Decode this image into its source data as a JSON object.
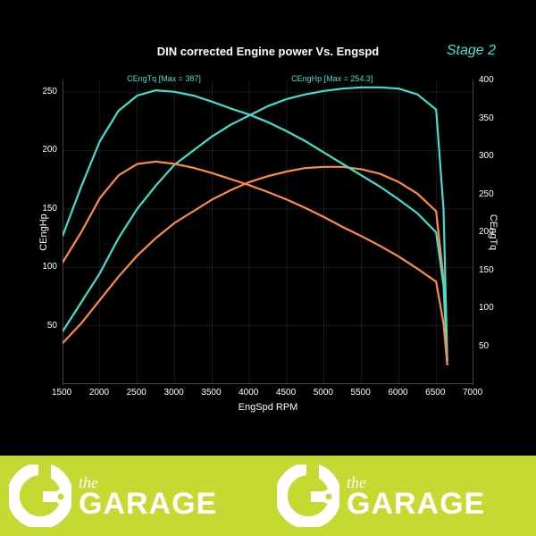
{
  "chart": {
    "type": "line",
    "title": "DIN corrected Engine power Vs. Engspd",
    "stage_label": "Stage 2",
    "xlabel": "EngSpd RPM",
    "ylabel_left": "CEngHp",
    "ylabel_right": "CEngTq",
    "xlim": [
      1500,
      7000
    ],
    "xticks": [
      1500,
      2000,
      2500,
      3000,
      3500,
      4000,
      4500,
      5000,
      5500,
      6000,
      6500,
      7000
    ],
    "ylim_left": [
      0,
      260
    ],
    "yticks_left": [
      50,
      100,
      150,
      200,
      250
    ],
    "ylim_right": [
      0,
      400
    ],
    "yticks_right": [
      50,
      100,
      150,
      200,
      250,
      300,
      350,
      400
    ],
    "background_color": "#000000",
    "grid_color": "#333333",
    "axis_color": "#888888",
    "text_color": "#ffffff",
    "title_fontsize": 13,
    "label_fontsize": 11,
    "tick_fontsize": 10,
    "annotations": [
      {
        "text": "CEngTq [Max = 387]",
        "x_rpm": 2900,
        "y_hp": 258,
        "color": "#40e0d0"
      },
      {
        "text": "CEngHp [Max = 254.3]",
        "x_rpm": 5100,
        "y_hp": 258,
        "color": "#40e0d0"
      }
    ],
    "series": [
      {
        "name": "hp_stage2",
        "color": "#40e0d0",
        "axis": "left",
        "x": [
          1500,
          1750,
          2000,
          2250,
          2500,
          2750,
          3000,
          3250,
          3500,
          3750,
          4000,
          4250,
          4500,
          4750,
          5000,
          5250,
          5500,
          5750,
          6000,
          6250,
          6500,
          6600,
          6650
        ],
        "y": [
          45,
          70,
          95,
          125,
          150,
          170,
          188,
          200,
          212,
          222,
          230,
          238,
          244,
          248,
          251,
          253,
          254,
          254,
          253,
          248,
          235,
          150,
          20
        ]
      },
      {
        "name": "hp_stock",
        "color": "#ff8c42",
        "axis": "left",
        "x": [
          1500,
          1750,
          2000,
          2250,
          2500,
          2750,
          3000,
          3250,
          3500,
          3750,
          4000,
          4250,
          4500,
          4750,
          5000,
          5250,
          5500,
          5750,
          6000,
          6250,
          6500,
          6600,
          6650
        ],
        "y": [
          35,
          52,
          72,
          92,
          110,
          125,
          138,
          148,
          158,
          166,
          173,
          178,
          182,
          185,
          186,
          186,
          184,
          180,
          173,
          163,
          148,
          90,
          20
        ]
      },
      {
        "name": "tq_stage2",
        "color": "#40e0d0",
        "axis": "right",
        "x": [
          1500,
          1750,
          2000,
          2250,
          2500,
          2750,
          3000,
          3250,
          3500,
          3750,
          4000,
          4250,
          4500,
          4750,
          5000,
          5250,
          5500,
          5750,
          6000,
          6250,
          6500,
          6600,
          6650
        ],
        "y": [
          195,
          260,
          320,
          360,
          380,
          387,
          385,
          380,
          372,
          363,
          355,
          345,
          333,
          320,
          305,
          290,
          275,
          260,
          243,
          225,
          200,
          130,
          25
        ]
      },
      {
        "name": "tq_stock",
        "color": "#ff8c42",
        "axis": "right",
        "x": [
          1500,
          1750,
          2000,
          2250,
          2500,
          2750,
          3000,
          3250,
          3500,
          3750,
          4000,
          4250,
          4500,
          4750,
          5000,
          5250,
          5500,
          5750,
          6000,
          6250,
          6500,
          6600,
          6650
        ],
        "y": [
          160,
          200,
          245,
          275,
          290,
          293,
          290,
          285,
          278,
          270,
          262,
          253,
          243,
          232,
          220,
          207,
          195,
          182,
          168,
          152,
          135,
          80,
          25
        ]
      }
    ]
  },
  "footer": {
    "background_color": "#c5d933",
    "logo_the": "the",
    "logo_main": "GARAGE",
    "text_color": "#ffffff"
  }
}
